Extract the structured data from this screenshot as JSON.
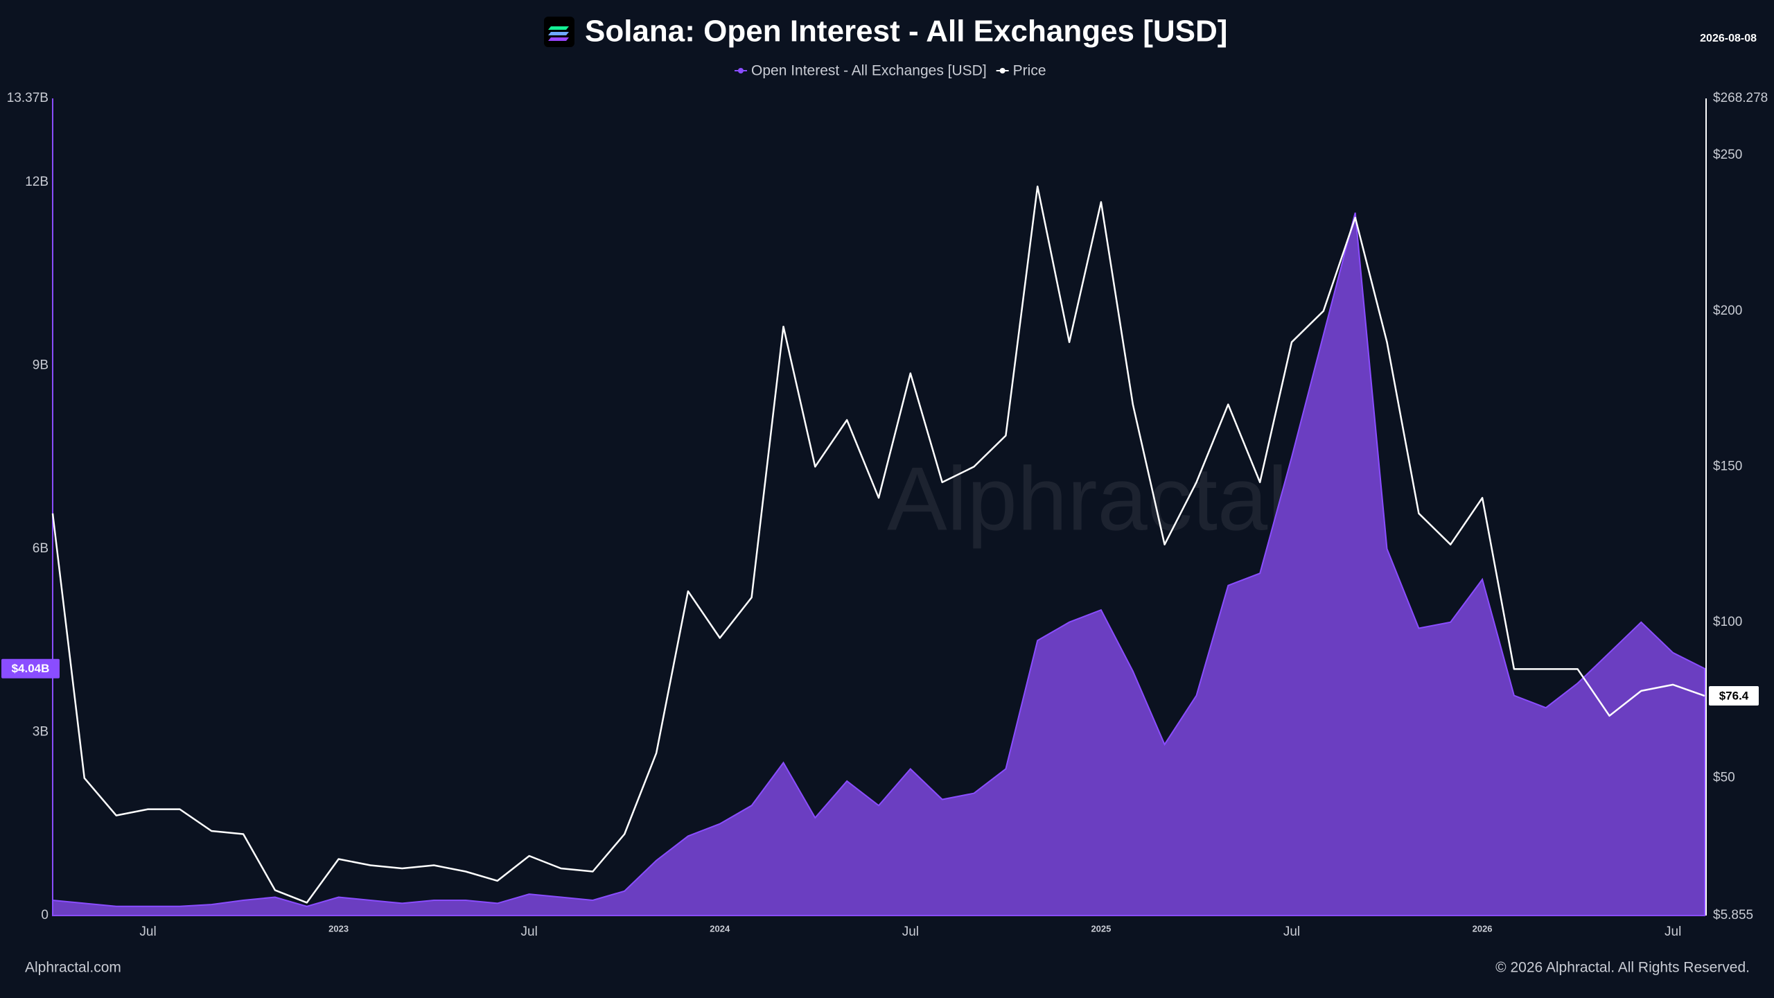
{
  "chart_data": {
    "type": "area-line",
    "title": "Solana: Open Interest - All Exchanges [USD]",
    "date": "2026-08-08",
    "watermark": "Alphractal",
    "footer_left": "Alphractal.com",
    "footer_right": "© 2026 Alphractal. All Rights Reserved.",
    "x": [
      "2022-04",
      "2022-05",
      "2022-06",
      "2022-07",
      "2022-08",
      "2022-09",
      "2022-10",
      "2022-11",
      "2022-12",
      "2023-01",
      "2023-02",
      "2023-03",
      "2023-04",
      "2023-05",
      "2023-06",
      "2023-07",
      "2023-08",
      "2023-09",
      "2023-10",
      "2023-11",
      "2023-12",
      "2024-01",
      "2024-02",
      "2024-03",
      "2024-04",
      "2024-05",
      "2024-06",
      "2024-07",
      "2024-08",
      "2024-09",
      "2024-10",
      "2024-11",
      "2024-12",
      "2025-01",
      "2025-02",
      "2025-03",
      "2025-04",
      "2025-05",
      "2025-06",
      "2025-07",
      "2025-08",
      "2025-09",
      "2025-10",
      "2025-11",
      "2025-12",
      "2026-01",
      "2026-02",
      "2026-03",
      "2026-04",
      "2026-05",
      "2026-06",
      "2026-07",
      "2026-08"
    ],
    "xlim": [
      "2022-04",
      "2026-08"
    ],
    "xticks": [
      {
        "value": "2022-07",
        "label": "Jul"
      },
      {
        "value": "2023-01",
        "label": "2023"
      },
      {
        "value": "2023-07",
        "label": "Jul"
      },
      {
        "value": "2024-01",
        "label": "2024"
      },
      {
        "value": "2024-07",
        "label": "Jul"
      },
      {
        "value": "2025-01",
        "label": "2025"
      },
      {
        "value": "2025-07",
        "label": "Jul"
      },
      {
        "value": "2026-01",
        "label": "2026"
      },
      {
        "value": "2026-07",
        "label": "Jul"
      }
    ],
    "ylim": [
      0,
      13.37
    ],
    "yticks": [
      {
        "value": 0,
        "label": "0"
      },
      {
        "value": 3,
        "label": "3B"
      },
      {
        "value": 6,
        "label": "6B"
      },
      {
        "value": 9,
        "label": "9B"
      },
      {
        "value": 12,
        "label": "12B"
      },
      {
        "value": 13.37,
        "label": "13.37B"
      }
    ],
    "y2lim": [
      5.855,
      268.278
    ],
    "y2ticks": [
      {
        "value": 5.855,
        "label": "$5.855"
      },
      {
        "value": 50,
        "label": "$50"
      },
      {
        "value": 100,
        "label": "$100"
      },
      {
        "value": 150,
        "label": "$150"
      },
      {
        "value": 200,
        "label": "$200"
      },
      {
        "value": 250,
        "label": "$250"
      },
      {
        "value": 268.278,
        "label": "$268.278"
      }
    ],
    "series": [
      {
        "name": "Open Interest - All Exchanges [USD]",
        "color": "#8a4dff",
        "axis": "y",
        "last_label": "$4.04B",
        "values": [
          0.25,
          0.2,
          0.15,
          0.15,
          0.15,
          0.18,
          0.25,
          0.3,
          0.15,
          0.3,
          0.25,
          0.2,
          0.25,
          0.25,
          0.2,
          0.35,
          0.3,
          0.25,
          0.4,
          0.9,
          1.3,
          1.5,
          1.8,
          2.5,
          1.6,
          2.2,
          1.8,
          2.4,
          1.9,
          2.0,
          2.4,
          4.5,
          4.8,
          5.0,
          4.0,
          2.8,
          3.6,
          5.4,
          5.6,
          7.5,
          9.5,
          11.5,
          6.0,
          4.7,
          4.8,
          5.5,
          3.6,
          3.4,
          3.8,
          4.3,
          4.8,
          4.3,
          4.04
        ]
      },
      {
        "name": "Price",
        "color": "#ffffff",
        "axis": "y2",
        "last_label": "$76.4",
        "values": [
          135,
          50,
          38,
          40,
          40,
          33,
          32,
          14,
          10,
          24,
          22,
          21,
          22,
          20,
          17,
          25,
          21,
          20,
          32,
          58,
          110,
          95,
          108,
          195,
          150,
          165,
          140,
          180,
          145,
          150,
          160,
          240,
          190,
          235,
          170,
          125,
          145,
          170,
          145,
          190,
          200,
          230,
          190,
          135,
          125,
          140,
          85,
          85,
          85,
          70,
          78,
          80,
          76.4
        ]
      }
    ]
  }
}
